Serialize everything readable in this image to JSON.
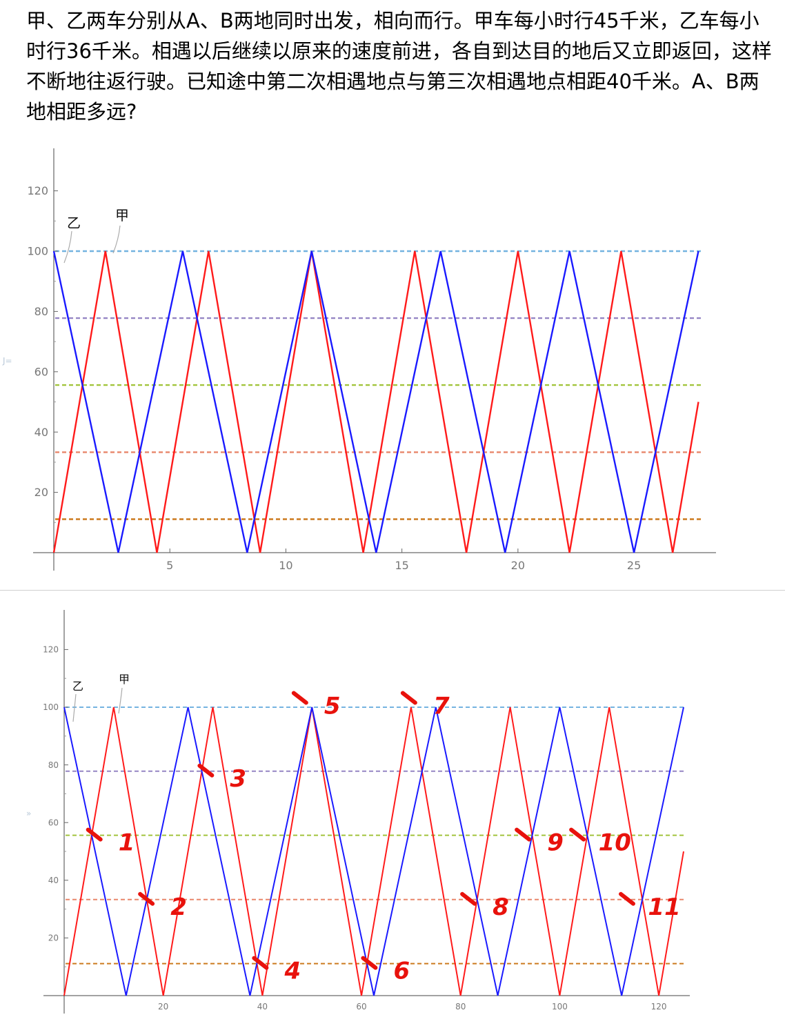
{
  "question": {
    "text": "甲、乙两车分别从A、B两地同时出发，相向而行。甲车每小时行45千米，乙车每小时行36千米。相遇以后继续以原来的速度前进，各自到达目的地后又立即返回，这样不断地往返行驶。已知途中第二次相遇地点与第三次相遇地点相距40千米。A、B两地相距多远?"
  },
  "side_marks": {
    "top": "J=",
    "bottom": "»"
  },
  "chart_data": [
    {
      "type": "line",
      "title": "",
      "xlabel": "",
      "ylabel": "",
      "xlim": [
        0,
        28
      ],
      "ylim": [
        0,
        130
      ],
      "x_ticks": [
        5,
        10,
        15,
        20,
        25
      ],
      "y_ticks": [
        20,
        40,
        60,
        80,
        100,
        120
      ],
      "grid": false,
      "series": [
        {
          "name": "甲",
          "color": "#ff1a1a",
          "x": [
            0,
            2.222,
            4.444,
            6.667,
            8.889,
            11.111,
            13.333,
            15.556,
            17.778,
            20,
            22.222,
            24.444,
            26.667,
            27.778
          ],
          "y": [
            0,
            100,
            0,
            100,
            0,
            100,
            0,
            100,
            0,
            100,
            0,
            100,
            0,
            50
          ]
        },
        {
          "name": "乙",
          "color": "#1a1aff",
          "x": [
            0,
            2.778,
            5.556,
            8.333,
            11.111,
            13.889,
            16.667,
            19.444,
            22.222,
            25,
            27.778
          ],
          "y": [
            100,
            0,
            100,
            0,
            100,
            0,
            100,
            0,
            100,
            0,
            100
          ]
        }
      ],
      "reference_lines": [
        {
          "y": 100,
          "color": "#74b3e0"
        },
        {
          "y": 77.8,
          "color": "#9585c4"
        },
        {
          "y": 55.6,
          "color": "#a2c43c"
        },
        {
          "y": 33.3,
          "color": "#e8866a"
        },
        {
          "y": 11.1,
          "color": "#cc7a1e"
        }
      ],
      "legend_labels": [
        "乙",
        "甲"
      ]
    },
    {
      "type": "line",
      "title": "",
      "xlabel": "",
      "ylabel": "",
      "xlim": [
        0,
        125
      ],
      "ylim": [
        0,
        130
      ],
      "x_ticks": [
        20,
        40,
        60,
        80,
        100,
        120
      ],
      "y_ticks": [
        20,
        40,
        60,
        80,
        100,
        120
      ],
      "grid": false,
      "series": [
        {
          "name": "甲",
          "color": "#ff1a1a",
          "x": [
            0,
            10,
            20,
            30,
            40,
            50,
            60,
            70,
            80,
            90,
            100,
            110,
            120,
            125
          ],
          "y": [
            0,
            100,
            0,
            100,
            0,
            100,
            0,
            100,
            0,
            100,
            0,
            100,
            0,
            50
          ]
        },
        {
          "name": "乙",
          "color": "#1a1aff",
          "x": [
            0,
            12.5,
            25,
            37.5,
            50,
            62.5,
            75,
            87.5,
            100,
            112.5,
            125
          ],
          "y": [
            100,
            0,
            100,
            0,
            100,
            0,
            100,
            0,
            100,
            0,
            100
          ]
        }
      ],
      "reference_lines": [
        {
          "y": 100,
          "color": "#74b3e0"
        },
        {
          "y": 77.8,
          "color": "#9585c4"
        },
        {
          "y": 55.6,
          "color": "#a2c43c"
        },
        {
          "y": 33.3,
          "color": "#e8866a"
        },
        {
          "y": 11.1,
          "color": "#cc7a1e"
        }
      ],
      "legend_labels": [
        "乙",
        "甲"
      ],
      "annotations": [
        {
          "label": "1",
          "x": 11.5,
          "y": 55.6
        },
        {
          "label": "2",
          "x": 22,
          "y": 33.3
        },
        {
          "label": "3",
          "x": 34,
          "y": 77.8
        },
        {
          "label": "4",
          "x": 45,
          "y": 11.1
        },
        {
          "label": "5",
          "x": 53,
          "y": 103
        },
        {
          "label": "6",
          "x": 67,
          "y": 11.1
        },
        {
          "label": "7",
          "x": 75,
          "y": 103
        },
        {
          "label": "8",
          "x": 87,
          "y": 33.3
        },
        {
          "label": "9",
          "x": 98,
          "y": 55.6
        },
        {
          "label": "10",
          "x": 110,
          "y": 55.6
        },
        {
          "label": "11",
          "x": 120,
          "y": 33.3
        }
      ]
    }
  ]
}
